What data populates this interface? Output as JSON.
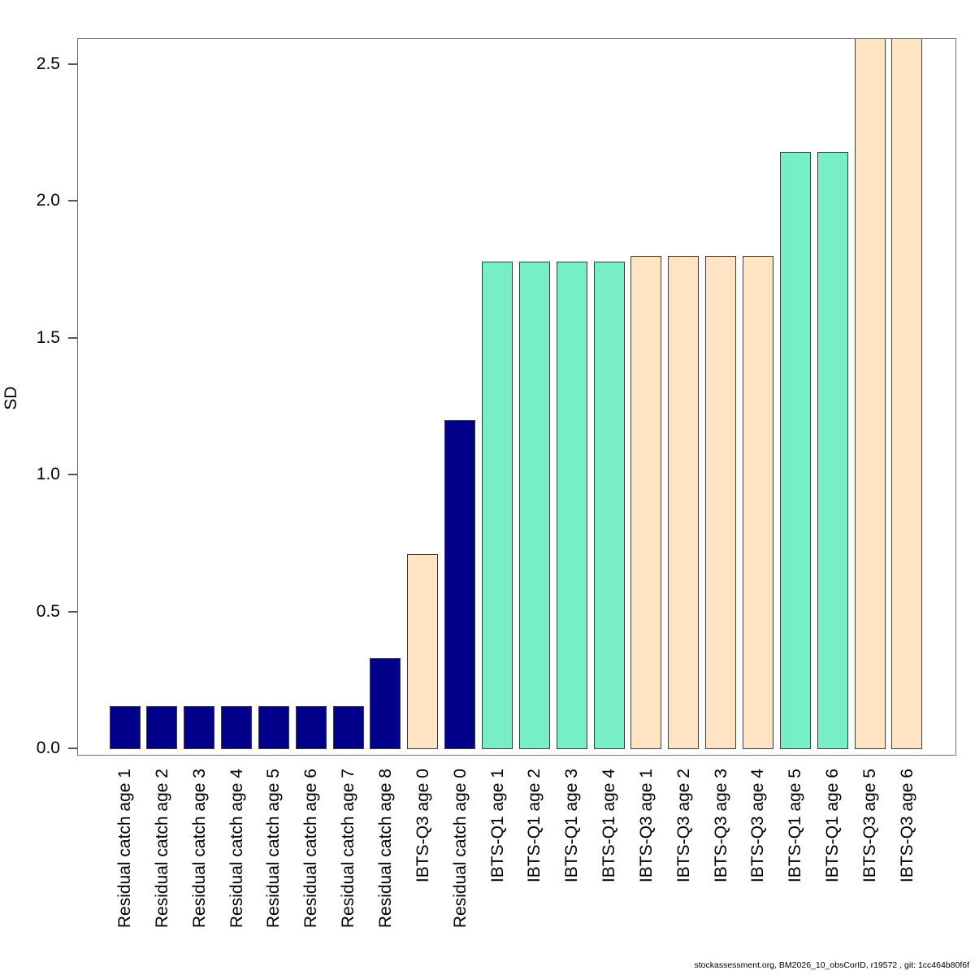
{
  "chart_data": {
    "type": "bar",
    "title": "",
    "xlabel": "",
    "ylabel": "SD",
    "ylim": [
      0,
      2.6
    ],
    "grid": false,
    "legend": "none",
    "x_tick_label_rotation": 90,
    "y_ticks": [
      0.0,
      0.5,
      1.0,
      1.5,
      2.0,
      2.5
    ],
    "y_tick_labels": [
      "0.0",
      "0.5",
      "1.0",
      "1.5",
      "2.0",
      "2.5"
    ],
    "categories": [
      "Residual catch age 1",
      "Residual catch age 2",
      "Residual catch age 3",
      "Residual catch age 4",
      "Residual catch age 5",
      "Residual catch age 6",
      "Residual catch age 7",
      "Residual catch age 8",
      "IBTS-Q3 age 0",
      "Residual catch age 0",
      "IBTS-Q1 age 1",
      "IBTS-Q1 age 2",
      "IBTS-Q1 age 3",
      "IBTS-Q1 age 4",
      "IBTS-Q3 age 1",
      "IBTS-Q3 age 2",
      "IBTS-Q3 age 3",
      "IBTS-Q3 age 4",
      "IBTS-Q1 age 5",
      "IBTS-Q1 age 6",
      "IBTS-Q3 age 5",
      "IBTS-Q3 age 6"
    ],
    "values": [
      0.155,
      0.155,
      0.155,
      0.155,
      0.155,
      0.155,
      0.155,
      0.33,
      0.71,
      1.2,
      1.78,
      1.78,
      1.78,
      1.78,
      1.8,
      1.8,
      1.8,
      1.8,
      2.18,
      2.18,
      2.59,
      2.59
    ],
    "bars": [
      {
        "label": "Residual catch age 1",
        "value": 0.155,
        "fleet": "residual_catch",
        "clipped": false
      },
      {
        "label": "Residual catch age 2",
        "value": 0.155,
        "fleet": "residual_catch",
        "clipped": false
      },
      {
        "label": "Residual catch age 3",
        "value": 0.155,
        "fleet": "residual_catch",
        "clipped": false
      },
      {
        "label": "Residual catch age 4",
        "value": 0.155,
        "fleet": "residual_catch",
        "clipped": false
      },
      {
        "label": "Residual catch age 5",
        "value": 0.155,
        "fleet": "residual_catch",
        "clipped": false
      },
      {
        "label": "Residual catch age 6",
        "value": 0.155,
        "fleet": "residual_catch",
        "clipped": false
      },
      {
        "label": "Residual catch age 7",
        "value": 0.155,
        "fleet": "residual_catch",
        "clipped": false
      },
      {
        "label": "Residual catch age 8",
        "value": 0.33,
        "fleet": "residual_catch",
        "clipped": false
      },
      {
        "label": "IBTS-Q3 age 0",
        "value": 0.71,
        "fleet": "ibts_q3",
        "clipped": false
      },
      {
        "label": "Residual catch age 0",
        "value": 1.2,
        "fleet": "residual_catch",
        "clipped": false
      },
      {
        "label": "IBTS-Q1 age 1",
        "value": 1.78,
        "fleet": "ibts_q1",
        "clipped": false
      },
      {
        "label": "IBTS-Q1 age 2",
        "value": 1.78,
        "fleet": "ibts_q1",
        "clipped": false
      },
      {
        "label": "IBTS-Q1 age 3",
        "value": 1.78,
        "fleet": "ibts_q1",
        "clipped": false
      },
      {
        "label": "IBTS-Q1 age 4",
        "value": 1.78,
        "fleet": "ibts_q1",
        "clipped": false
      },
      {
        "label": "IBTS-Q3 age 1",
        "value": 1.8,
        "fleet": "ibts_q3",
        "clipped": false
      },
      {
        "label": "IBTS-Q3 age 2",
        "value": 1.8,
        "fleet": "ibts_q3",
        "clipped": false
      },
      {
        "label": "IBTS-Q3 age 3",
        "value": 1.8,
        "fleet": "ibts_q3",
        "clipped": false
      },
      {
        "label": "IBTS-Q3 age 4",
        "value": 1.8,
        "fleet": "ibts_q3",
        "clipped": false
      },
      {
        "label": "IBTS-Q1 age 5",
        "value": 2.18,
        "fleet": "ibts_q1",
        "clipped": false
      },
      {
        "label": "IBTS-Q1 age 6",
        "value": 2.18,
        "fleet": "ibts_q1",
        "clipped": false
      },
      {
        "label": "IBTS-Q3 age 5",
        "value": 2.59,
        "fleet": "ibts_q3",
        "clipped": true
      },
      {
        "label": "IBTS-Q3 age 6",
        "value": 2.59,
        "fleet": "ibts_q3",
        "clipped": true
      }
    ]
  },
  "colors": {
    "residual_catch": "#00008B",
    "ibts_q1": "#76EEC6",
    "ibts_q3": "#FFE4C4",
    "bar_border": "#3c3c3c",
    "frame": "#707070",
    "background": "#FFFFFF",
    "text": "#000000"
  },
  "footer": {
    "text": "stockassessment.org, BM2026_10_obsCorID, r19572 , git: 1cc464b80f6f"
  }
}
